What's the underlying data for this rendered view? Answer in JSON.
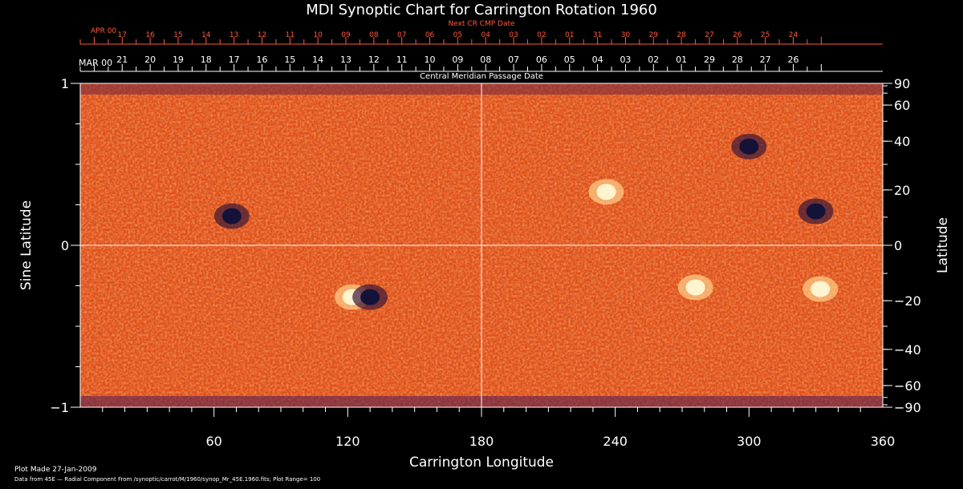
{
  "chart_data": {
    "type": "heatmap",
    "title": "MDI Synoptic Chart for Carrington Rotation 1960",
    "xlabel": "Carrington Longitude",
    "ylabel_left": "Sine Latitude",
    "ylabel_right": "Latitude",
    "xlim": [
      0,
      360
    ],
    "ylim": [
      -1,
      1
    ],
    "x_ticks": [
      60,
      120,
      180,
      240,
      300,
      360
    ],
    "y_ticks_left": [
      "1",
      "0",
      "−1"
    ],
    "y_ticks_right": [
      90,
      60,
      40,
      20,
      0,
      -20,
      -40,
      -60,
      -90
    ],
    "grid_lines": {
      "longitude": 180,
      "sine_latitude": 0
    },
    "top_axis_next": {
      "label": "Next CR CMP Date",
      "month": "APR 00",
      "days": [
        "17",
        "16",
        "15",
        "14",
        "13",
        "12",
        "11",
        "10",
        "09",
        "08",
        "07",
        "06",
        "05",
        "04",
        "03",
        "02",
        "01",
        "31",
        "30",
        "29",
        "28",
        "27",
        "26",
        "25",
        "24"
      ]
    },
    "top_axis_cmp": {
      "label": "Central Meridian Passage Date",
      "month": "MAR 00",
      "days": [
        "21",
        "20",
        "19",
        "18",
        "17",
        "16",
        "15",
        "14",
        "13",
        "12",
        "11",
        "10",
        "09",
        "08",
        "07",
        "06",
        "05",
        "04",
        "03",
        "02",
        "01",
        "29",
        "28",
        "27",
        "26"
      ]
    },
    "colors": {
      "background": "#000000",
      "field": "#e8541c",
      "positive": "#fff4d0",
      "negative": "#15123a",
      "next_axis": "#ff5a3c"
    },
    "active_regions": [
      {
        "lon": 68,
        "sinlat": 0.18,
        "polarity": "negative"
      },
      {
        "lon": 122,
        "sinlat": -0.32,
        "polarity": "positive"
      },
      {
        "lon": 130,
        "sinlat": -0.32,
        "polarity": "negative"
      },
      {
        "lon": 236,
        "sinlat": 0.33,
        "polarity": "positive"
      },
      {
        "lon": 276,
        "sinlat": -0.26,
        "polarity": "positive"
      },
      {
        "lon": 300,
        "sinlat": 0.61,
        "polarity": "negative"
      },
      {
        "lon": 330,
        "sinlat": 0.21,
        "polarity": "negative"
      },
      {
        "lon": 332,
        "sinlat": -0.27,
        "polarity": "positive"
      }
    ]
  },
  "footer": {
    "plot_made": "Plot Made 27-Jan-2009",
    "data_source": "Data from 45E — Radial Component From /synoptic/carrot/M/1960/synop_Mr_45E.1960.fits; Plot Range=  100"
  }
}
